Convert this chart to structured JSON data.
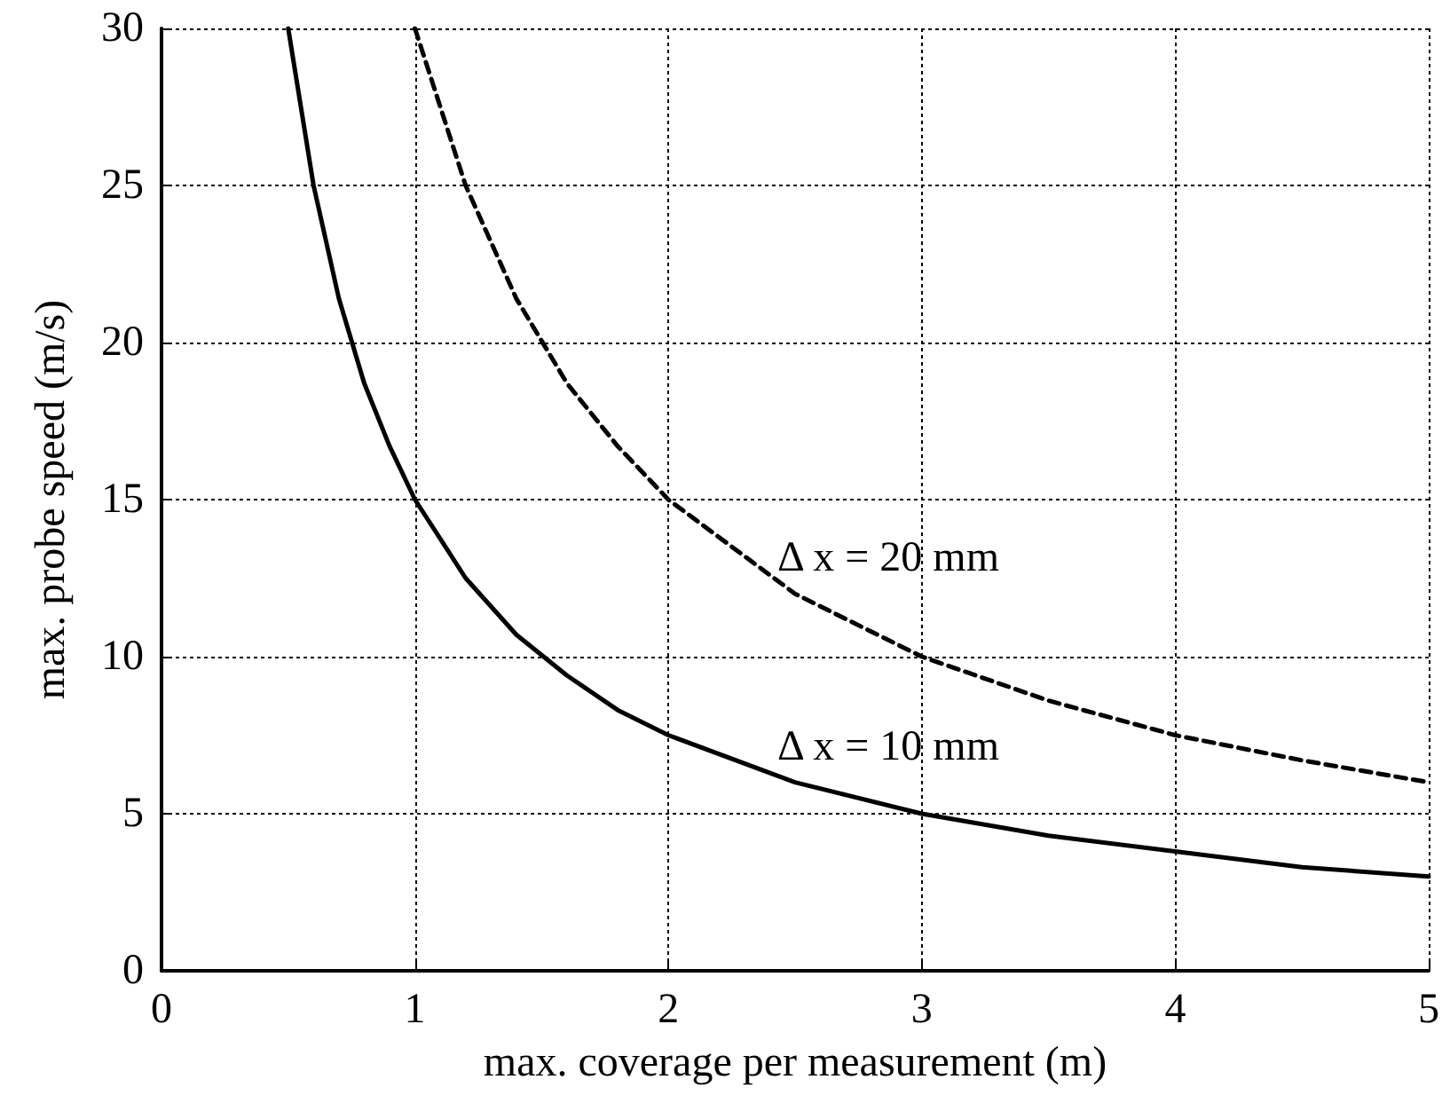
{
  "chart_data": {
    "type": "line",
    "xlabel": "max. coverage per measurement (m)",
    "ylabel": "max. probe speed (m/s)",
    "xlim": [
      0,
      5
    ],
    "ylim": [
      0,
      30
    ],
    "xticks": [
      0,
      1,
      2,
      3,
      4,
      5
    ],
    "yticks": [
      0,
      5,
      10,
      15,
      20,
      25,
      30
    ],
    "grid": true,
    "legend": false,
    "marker": "none",
    "series": [
      {
        "name": "Δ x = 10 mm",
        "color": "#000000",
        "line_style": "solid",
        "x": [
          0.5,
          0.6,
          0.7,
          0.8,
          0.9,
          1,
          1.2,
          1.4,
          1.6,
          1.8,
          2,
          2.5,
          3,
          3.5,
          4,
          4.5,
          5
        ],
        "values": [
          30,
          25,
          21.4,
          18.7,
          16.7,
          15,
          12.5,
          10.7,
          9.4,
          8.3,
          7.5,
          6,
          5,
          4.3,
          3.8,
          3.3,
          3
        ]
      },
      {
        "name": "Δ x = 20 mm",
        "color": "#000000",
        "line_style": "dashed",
        "x": [
          1,
          1.2,
          1.4,
          1.6,
          1.8,
          2,
          2.5,
          3,
          3.5,
          4,
          4.5,
          5
        ],
        "values": [
          30,
          25,
          21.4,
          18.7,
          16.7,
          15,
          12,
          10,
          8.6,
          7.5,
          6.7,
          6
        ]
      }
    ]
  }
}
